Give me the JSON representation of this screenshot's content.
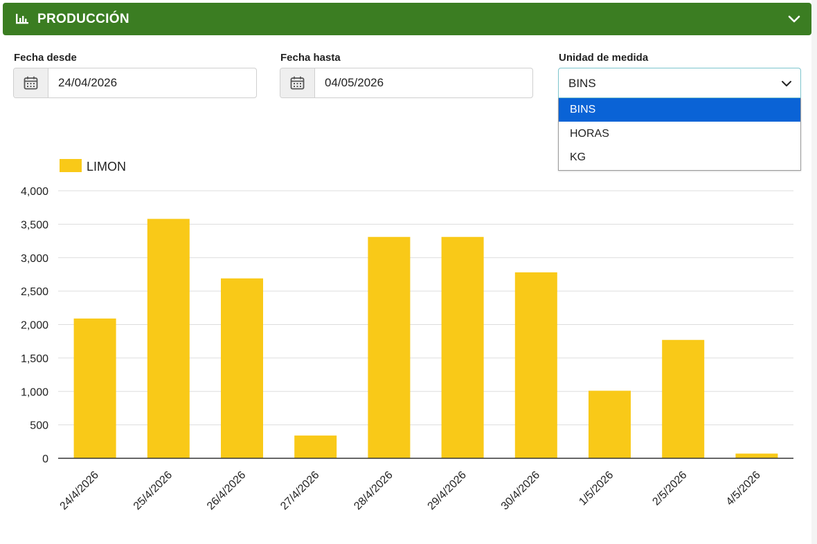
{
  "header": {
    "title": "PRODUCCIÓN",
    "icon": "bar-chart-icon",
    "collapse_icon": "chevron-down-icon",
    "color": "#3b7d22"
  },
  "filters": {
    "date_from": {
      "label": "Fecha desde",
      "value": "24/04/2026",
      "icon": "calendar-icon"
    },
    "date_to": {
      "label": "Fecha hasta",
      "value": "04/05/2026",
      "icon": "calendar-icon"
    },
    "unit": {
      "label": "Unidad de medida",
      "value": "BINS",
      "options": [
        "BINS",
        "HORAS",
        "KG"
      ],
      "selected_index": 0
    }
  },
  "chart_data": {
    "type": "bar",
    "categories": [
      "24/4/2026",
      "25/4/2026",
      "26/4/2026",
      "27/4/2026",
      "28/4/2026",
      "29/4/2026",
      "30/4/2026",
      "1/5/2026",
      "2/5/2026",
      "4/5/2026"
    ],
    "series": [
      {
        "name": "LIMON",
        "color": "#f9c918",
        "values": [
          2090,
          3580,
          2690,
          340,
          3310,
          3310,
          2780,
          1010,
          1770,
          70
        ]
      }
    ],
    "yticks": [
      "0",
      "500",
      "1,000",
      "1,500",
      "2,000",
      "2,500",
      "3,000",
      "3,500",
      "4,000"
    ],
    "ylim": [
      0,
      4000
    ],
    "grid": true,
    "legend_position": "top-left"
  }
}
